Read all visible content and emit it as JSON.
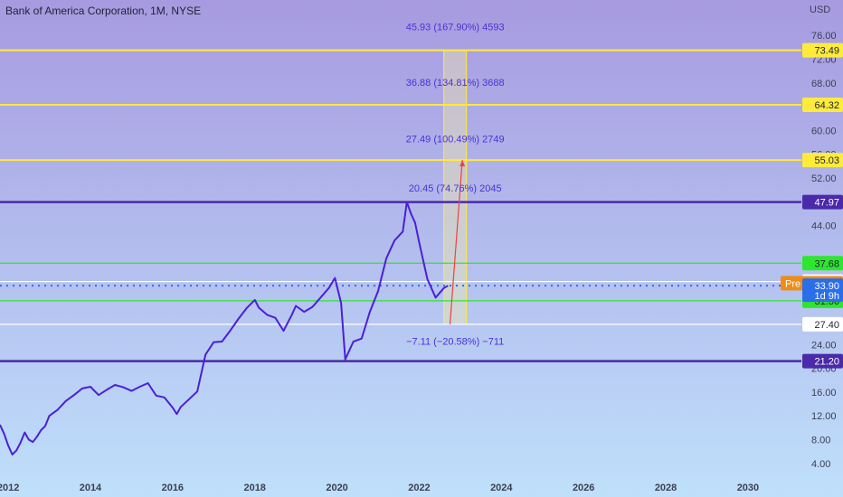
{
  "title": "Bank of America Corporation, 1M, NYSE",
  "currency": "USD",
  "colors": {
    "background_top": "#a79ae0",
    "background_bottom": "#bfe0fb",
    "price_line": "#4b20d6",
    "fib_line": "#ffeb3b",
    "support_line": "#4a2aa8",
    "green_line": "#2ee62e",
    "white_line": "#ffffff",
    "current_price": "#2b6ee9",
    "pre_market": "#f08c16",
    "projection": "#f04040"
  },
  "chart_data": {
    "type": "line",
    "xlabel": "",
    "ylabel": "",
    "xlim": [
      2011.8,
      2031.3
    ],
    "ylim": [
      2.0,
      78.0
    ],
    "x_ticks": [
      "2012",
      "2014",
      "2016",
      "2018",
      "2020",
      "2022",
      "2024",
      "2026",
      "2028",
      "2030"
    ],
    "y_ticks": [
      "76.00",
      "72.00",
      "68.00",
      "60.00",
      "56.00",
      "52.00",
      "44.00",
      "24.00",
      "20.00",
      "16.00",
      "12.00",
      "8.00",
      "4.00"
    ],
    "price_series": {
      "x": [
        2011.8,
        2011.9,
        2012.0,
        2012.1,
        2012.2,
        2012.3,
        2012.4,
        2012.5,
        2012.6,
        2012.7,
        2012.8,
        2012.9,
        2013.0,
        2013.2,
        2013.4,
        2013.6,
        2013.8,
        2014.0,
        2014.2,
        2014.4,
        2014.6,
        2014.8,
        2015.0,
        2015.2,
        2015.4,
        2015.6,
        2015.8,
        2016.0,
        2016.1,
        2016.2,
        2016.4,
        2016.6,
        2016.8,
        2017.0,
        2017.2,
        2017.4,
        2017.6,
        2017.8,
        2018.0,
        2018.1,
        2018.3,
        2018.5,
        2018.7,
        2018.9,
        2019.0,
        2019.2,
        2019.4,
        2019.6,
        2019.8,
        2019.95,
        2020.1,
        2020.2,
        2020.4,
        2020.6,
        2020.8,
        2021.0,
        2021.2,
        2021.4,
        2021.6,
        2021.7,
        2021.8,
        2021.9,
        2022.0,
        2022.2,
        2022.4,
        2022.6,
        2022.7
      ],
      "y": [
        10.5,
        9.0,
        7.0,
        5.5,
        6.2,
        7.5,
        9.2,
        8.0,
        7.6,
        8.5,
        9.6,
        10.3,
        12.0,
        13.0,
        14.5,
        15.5,
        16.6,
        16.9,
        15.5,
        16.4,
        17.2,
        16.8,
        16.2,
        16.9,
        17.5,
        15.4,
        15.1,
        13.4,
        12.3,
        13.5,
        14.8,
        16.1,
        22.3,
        24.4,
        24.5,
        26.3,
        28.3,
        30.1,
        31.5,
        30.2,
        29.0,
        28.5,
        26.3,
        29.0,
        30.5,
        29.5,
        30.3,
        31.9,
        33.5,
        35.2,
        31.0,
        21.5,
        24.5,
        25.0,
        29.5,
        33.0,
        38.5,
        41.5,
        43.0,
        47.97,
        46.0,
        44.5,
        41.2,
        35.0,
        31.9,
        33.5,
        33.9
      ]
    },
    "horizontal_levels": [
      {
        "value": 73.49,
        "label": "73.49",
        "kind": "fib"
      },
      {
        "value": 64.32,
        "label": "64.32",
        "kind": "fib"
      },
      {
        "value": 55.03,
        "label": "55.03",
        "kind": "fib"
      },
      {
        "value": 47.97,
        "label": "47.97",
        "kind": "support"
      },
      {
        "value": 37.68,
        "label": "37.68",
        "kind": "green"
      },
      {
        "value": 34.58,
        "label": "34.58",
        "kind": "white"
      },
      {
        "value": 31.36,
        "label": "31.36",
        "kind": "green"
      },
      {
        "value": 27.4,
        "label": "27.40",
        "kind": "white"
      },
      {
        "value": 21.2,
        "label": "21.20",
        "kind": "support"
      }
    ],
    "current_price": {
      "value": 33.9,
      "label": "33.90",
      "countdown": "1d 9h"
    },
    "pre_market": {
      "value": 34.32,
      "label": "34.32",
      "tag": "Pre"
    },
    "fib_range": {
      "x_start": 2022.6,
      "x_end": 2023.15,
      "y_low": 27.4
    },
    "fib_annotations": [
      {
        "y": 77.5,
        "text": "45.93 (167.90%) 4593"
      },
      {
        "y": 68.1,
        "text": "36.88 (134.81%) 3688"
      },
      {
        "y": 58.6,
        "text": "27.49 (100.49%) 2749"
      },
      {
        "y": 50.3,
        "text": "20.45 (74.76%) 2045"
      },
      {
        "y": 24.6,
        "text": "−7.11 (−20.58%) −711"
      }
    ],
    "projection": {
      "x": [
        2022.75,
        2023.05
      ],
      "y": [
        27.4,
        55.03
      ]
    }
  }
}
